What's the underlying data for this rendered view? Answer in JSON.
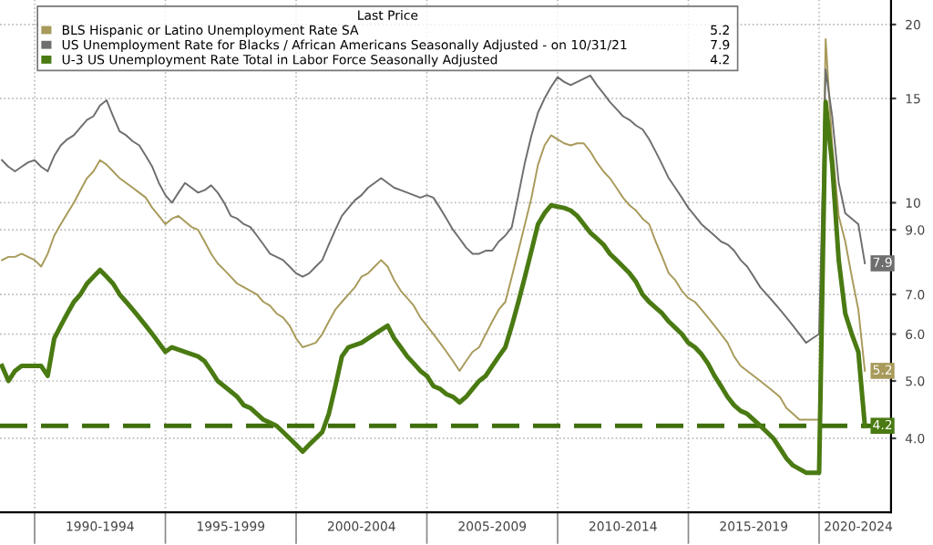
{
  "chart_data": {
    "type": "line",
    "legend_title": "Last Price",
    "legend": "top left",
    "grid": true,
    "log": "y",
    "line_style": "solid",
    "marker": "none",
    "categories": [
      null,
      null,
      null,
      null,
      null,
      null,
      null,
      null,
      null,
      null,
      null,
      null,
      null,
      null,
      null,
      "1990-1994",
      null,
      null,
      null,
      null,
      null,
      null,
      null,
      null,
      null,
      null,
      null,
      null,
      null,
      null,
      null,
      null,
      null,
      null,
      null,
      "1995-1999",
      null,
      null,
      null,
      null,
      null,
      null,
      null,
      null,
      null,
      null,
      null,
      null,
      null,
      null,
      null,
      null,
      null,
      null,
      null,
      "2000-2004",
      null,
      null,
      null,
      null,
      null,
      null,
      null,
      null,
      null,
      null,
      null,
      null,
      null,
      null,
      null,
      null,
      null,
      null,
      null,
      "2005-2009",
      null,
      null,
      null,
      null,
      null,
      null,
      null,
      null,
      null,
      null,
      null,
      null,
      null,
      null,
      null,
      null,
      null,
      null,
      null,
      "2010-2014",
      null,
      null,
      null,
      null,
      null,
      null,
      null,
      null,
      null,
      null,
      null,
      null,
      null,
      null,
      null,
      null,
      null,
      null,
      null,
      "2015-2019",
      null,
      null,
      null,
      null,
      null,
      null,
      null,
      null,
      null,
      null,
      null,
      null,
      null,
      null,
      null,
      "2020-2024",
      null
    ],
    "ylim": [
      3,
      22
    ],
    "yticks": [
      {
        "value": 4,
        "label": "4.0"
      },
      {
        "value": 5,
        "label": "5.0"
      },
      {
        "value": 6,
        "label": "6.0"
      },
      {
        "value": 7,
        "label": "7.0"
      },
      {
        "value": 9,
        "label": "9.0"
      },
      10,
      15,
      20
    ],
    "ref_lines": [
      {
        "axis": "y",
        "value": 4.2,
        "color": "#3f6e0c",
        "line_style": "dashed"
      }
    ],
    "series": [
      {
        "name": "BLS Hispanic or Latino Unemployment Rate SA",
        "color": "#a89a5a",
        "values": [
          8.0,
          8.1,
          8.1,
          8.2,
          8.1,
          8.0,
          7.8,
          8.2,
          8.8,
          9.2,
          9.6,
          10.0,
          10.5,
          11.0,
          11.3,
          11.8,
          11.6,
          11.3,
          11.0,
          10.8,
          10.6,
          10.4,
          10.2,
          9.8,
          9.5,
          9.2,
          9.4,
          9.5,
          9.3,
          9.1,
          9.0,
          8.6,
          8.2,
          7.9,
          7.7,
          7.5,
          7.3,
          7.2,
          7.1,
          7.0,
          6.8,
          6.7,
          6.5,
          6.4,
          6.2,
          5.9,
          5.7,
          5.75,
          5.8,
          6.0,
          6.3,
          6.6,
          6.8,
          7.0,
          7.2,
          7.5,
          7.6,
          7.8,
          8.0,
          7.8,
          7.4,
          7.1,
          6.9,
          6.7,
          6.4,
          6.2,
          6.0,
          5.8,
          5.6,
          5.4,
          5.2,
          5.4,
          5.6,
          5.7,
          6.0,
          6.3,
          6.6,
          6.8,
          7.5,
          8.3,
          9.2,
          10.2,
          11.6,
          12.5,
          13.0,
          12.8,
          12.6,
          12.5,
          12.6,
          12.6,
          12.2,
          11.7,
          11.3,
          11.0,
          10.6,
          10.2,
          9.9,
          9.7,
          9.4,
          9.2,
          8.6,
          8.1,
          7.6,
          7.4,
          7.1,
          6.9,
          6.8,
          6.6,
          6.4,
          6.2,
          6.0,
          5.8,
          5.5,
          5.3,
          5.2,
          5.1,
          5.0,
          4.9,
          4.8,
          4.7,
          4.5,
          4.4,
          4.3,
          4.3,
          4.3,
          4.3,
          18.9,
          12.5,
          9.5,
          8.6,
          7.5,
          6.6,
          5.2
        ],
        "value_labels": [
          null,
          null,
          null,
          null,
          null,
          null,
          null,
          null,
          null,
          null,
          null,
          null,
          null,
          null,
          null,
          null,
          null,
          null,
          null,
          null,
          null,
          null,
          null,
          null,
          null,
          null,
          null,
          null,
          null,
          null,
          null,
          null,
          null,
          null,
          null,
          null,
          null,
          null,
          null,
          null,
          null,
          null,
          null,
          null,
          null,
          null,
          null,
          null,
          null,
          null,
          null,
          null,
          null,
          null,
          null,
          null,
          null,
          null,
          null,
          null,
          null,
          null,
          null,
          null,
          null,
          null,
          null,
          null,
          null,
          null,
          null,
          null,
          null,
          null,
          null,
          null,
          null,
          null,
          null,
          null,
          null,
          null,
          null,
          null,
          null,
          null,
          null,
          null,
          null,
          null,
          null,
          null,
          null,
          null,
          null,
          null,
          null,
          null,
          null,
          null,
          null,
          null,
          null,
          null,
          null,
          null,
          null,
          null,
          null,
          null,
          null,
          null,
          null,
          null,
          null,
          null,
          null,
          null,
          null,
          null,
          null,
          null,
          null,
          null,
          null,
          null,
          null,
          null,
          null,
          null,
          null,
          null,
          "5.2"
        ]
      },
      {
        "name": "US Unemployment Rate for Blacks / African Americans Seasonally Adjusted - on 10/31/21",
        "color": "#6e6e6e",
        "values": [
          11.8,
          11.5,
          11.3,
          11.5,
          11.7,
          11.8,
          11.5,
          11.3,
          12.0,
          12.5,
          12.8,
          13.0,
          13.4,
          13.8,
          14.0,
          14.6,
          14.9,
          14.0,
          13.2,
          13.0,
          12.7,
          12.5,
          12.0,
          11.5,
          10.8,
          10.3,
          10.0,
          10.4,
          10.8,
          10.6,
          10.4,
          10.5,
          10.7,
          10.4,
          10.0,
          9.5,
          9.4,
          9.2,
          9.1,
          8.8,
          8.5,
          8.2,
          8.1,
          8.0,
          7.8,
          7.6,
          7.5,
          7.6,
          7.8,
          8.0,
          8.5,
          9.0,
          9.5,
          9.8,
          10.1,
          10.3,
          10.6,
          10.8,
          11.0,
          10.8,
          10.6,
          10.5,
          10.4,
          10.3,
          10.2,
          10.3,
          10.2,
          9.8,
          9.4,
          9.0,
          8.7,
          8.4,
          8.2,
          8.2,
          8.3,
          8.3,
          8.6,
          8.8,
          9.1,
          10.3,
          11.7,
          13.0,
          14.2,
          15.0,
          15.7,
          16.3,
          16.0,
          15.8,
          16.0,
          16.2,
          16.4,
          15.8,
          15.3,
          14.8,
          14.4,
          14.0,
          13.8,
          13.5,
          13.3,
          12.8,
          12.2,
          11.6,
          11.0,
          10.6,
          10.2,
          9.8,
          9.5,
          9.2,
          9.0,
          8.8,
          8.6,
          8.5,
          8.3,
          8.0,
          7.8,
          7.5,
          7.2,
          7.0,
          6.8,
          6.6,
          6.4,
          6.2,
          6.0,
          5.8,
          5.9,
          6.0,
          16.8,
          14.0,
          10.8,
          9.6,
          9.4,
          9.2,
          7.9
        ],
        "value_labels": [
          null,
          null,
          null,
          null,
          null,
          null,
          null,
          null,
          null,
          null,
          null,
          null,
          null,
          null,
          null,
          null,
          null,
          null,
          null,
          null,
          null,
          null,
          null,
          null,
          null,
          null,
          null,
          null,
          null,
          null,
          null,
          null,
          null,
          null,
          null,
          null,
          null,
          null,
          null,
          null,
          null,
          null,
          null,
          null,
          null,
          null,
          null,
          null,
          null,
          null,
          null,
          null,
          null,
          null,
          null,
          null,
          null,
          null,
          null,
          null,
          null,
          null,
          null,
          null,
          null,
          null,
          null,
          null,
          null,
          null,
          null,
          null,
          null,
          null,
          null,
          null,
          null,
          null,
          null,
          null,
          null,
          null,
          null,
          null,
          null,
          null,
          null,
          null,
          null,
          null,
          null,
          null,
          null,
          null,
          null,
          null,
          null,
          null,
          null,
          null,
          null,
          null,
          null,
          null,
          null,
          null,
          null,
          null,
          null,
          null,
          null,
          null,
          null,
          null,
          null,
          null,
          null,
          null,
          null,
          null,
          null,
          null,
          null,
          null,
          null,
          null,
          null,
          null,
          null,
          null,
          null,
          null,
          "7.9"
        ]
      },
      {
        "name": "U-3 US Unemployment Rate Total in Labor Force Seasonally Adjusted",
        "color": "#4a7a12",
        "values": [
          5.3,
          5.0,
          5.2,
          5.3,
          5.3,
          5.3,
          5.3,
          5.1,
          5.9,
          6.2,
          6.5,
          6.8,
          7.0,
          7.3,
          7.5,
          7.7,
          7.5,
          7.3,
          7.0,
          6.8,
          6.6,
          6.4,
          6.2,
          6.0,
          5.8,
          5.6,
          5.7,
          5.65,
          5.6,
          5.55,
          5.5,
          5.4,
          5.2,
          5.0,
          4.9,
          4.8,
          4.7,
          4.55,
          4.5,
          4.4,
          4.3,
          4.25,
          4.2,
          4.1,
          4.0,
          3.9,
          3.8,
          3.9,
          4.0,
          4.1,
          4.4,
          4.9,
          5.5,
          5.7,
          5.75,
          5.8,
          5.9,
          6.0,
          6.1,
          6.2,
          5.9,
          5.7,
          5.5,
          5.35,
          5.2,
          5.1,
          4.9,
          4.85,
          4.75,
          4.7,
          4.6,
          4.7,
          4.85,
          5.0,
          5.1,
          5.3,
          5.5,
          5.7,
          6.2,
          6.8,
          7.5,
          8.3,
          9.2,
          9.6,
          9.9,
          9.85,
          9.8,
          9.7,
          9.5,
          9.2,
          8.9,
          8.7,
          8.5,
          8.2,
          8.0,
          7.8,
          7.6,
          7.35,
          7.0,
          6.8,
          6.65,
          6.5,
          6.3,
          6.15,
          6.0,
          5.8,
          5.7,
          5.55,
          5.35,
          5.1,
          4.9,
          4.7,
          4.55,
          4.45,
          4.4,
          4.3,
          4.2,
          4.1,
          4.0,
          3.85,
          3.7,
          3.6,
          3.55,
          3.5,
          3.5,
          3.5,
          14.8,
          11.6,
          8.0,
          6.5,
          6.0,
          5.6,
          4.2
        ],
        "value_labels": [
          null,
          null,
          null,
          null,
          null,
          null,
          null,
          null,
          null,
          null,
          null,
          null,
          null,
          null,
          null,
          null,
          null,
          null,
          null,
          null,
          null,
          null,
          null,
          null,
          null,
          null,
          null,
          null,
          null,
          null,
          null,
          null,
          null,
          null,
          null,
          null,
          null,
          null,
          null,
          null,
          null,
          null,
          null,
          null,
          null,
          null,
          null,
          null,
          null,
          null,
          null,
          null,
          null,
          null,
          null,
          null,
          null,
          null,
          null,
          null,
          null,
          null,
          null,
          null,
          null,
          null,
          null,
          null,
          null,
          null,
          null,
          null,
          null,
          null,
          null,
          null,
          null,
          null,
          null,
          null,
          null,
          null,
          null,
          null,
          null,
          null,
          null,
          null,
          null,
          null,
          null,
          null,
          null,
          null,
          null,
          null,
          null,
          null,
          null,
          null,
          null,
          null,
          null,
          null,
          null,
          null,
          null,
          null,
          null,
          null,
          null,
          null,
          null,
          null,
          null,
          null,
          null,
          null,
          null,
          null,
          null,
          null,
          null,
          null,
          null,
          null,
          null,
          null,
          null,
          null,
          null,
          null,
          "4.2"
        ]
      }
    ]
  }
}
